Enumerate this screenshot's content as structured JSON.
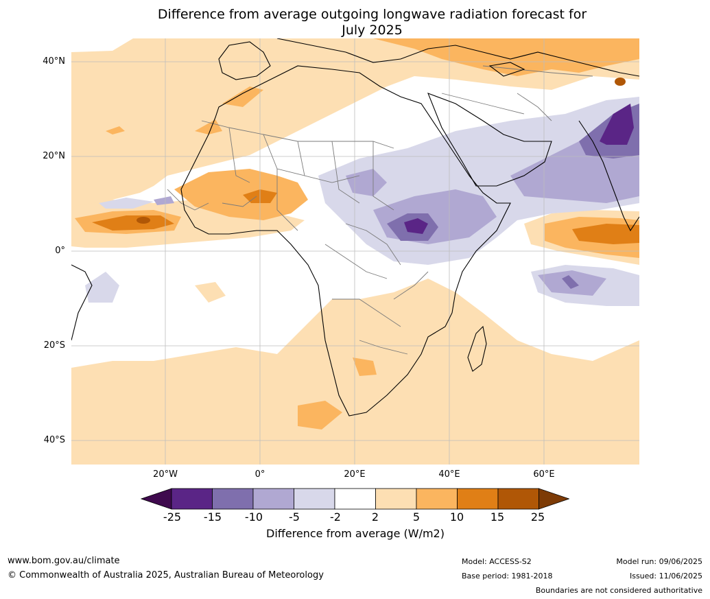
{
  "title": "Difference from average outgoing longwave radiation forecast for July 2025",
  "title_line1": "Difference from average outgoing longwave radiation forecast for",
  "title_line2": "July 2025",
  "axes": {
    "lat_labels": [
      "40°N",
      "20°N",
      "0°",
      "20°S",
      "40°S"
    ],
    "lon_labels": [
      "20°W",
      "0°",
      "20°E",
      "40°E",
      "60°E"
    ]
  },
  "colorbar": {
    "ticks": [
      "-25",
      "-15",
      "-10",
      "-5",
      "-2",
      "2",
      "5",
      "10",
      "15",
      "25"
    ],
    "colors": [
      "#3f0a4e",
      "#5a2586",
      "#7f6fad",
      "#b0a8d2",
      "#d8d8ea",
      "#ffffff",
      "#fddfb3",
      "#fbb55f",
      "#e07f16",
      "#b05706",
      "#7d3b06"
    ],
    "label": "Difference from average (W/m2)"
  },
  "footer": {
    "website": "www.bom.gov.au/climate",
    "copyright": "© Commonwealth of Australia 2025, Australian Bureau of Meteorology",
    "model": "Model: ACCESS-S2",
    "base_period": "Base period: 1981-2018",
    "model_run": "Model run: 09/06/2025",
    "issued": "Issued: 11/06/2025",
    "disclaimer": "Boundaries are not considered authoritative"
  }
}
